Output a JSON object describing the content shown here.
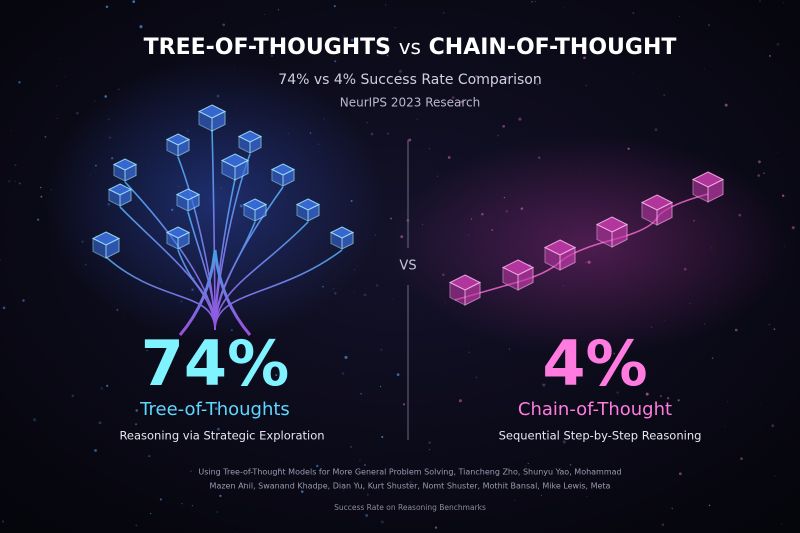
{
  "header": {
    "title_left": "TREE-OF-THOUGHTS",
    "title_vs": "vs",
    "title_right": "CHAIN-OF-THOUGHT",
    "subtitle": "74% vs 4% Success Rate Comparison",
    "source": "NeurIPS 2023 Research"
  },
  "divider": {
    "label": "VS"
  },
  "left": {
    "stat": "74%",
    "name": "Tree-of-Thoughts",
    "description": "Reasoning via Strategic Exploration"
  },
  "right": {
    "stat": "4%",
    "name": "Chain-of-Thought",
    "description": "Sequential Step-by-Step Reasoning"
  },
  "footer": {
    "citation": [
      "Using Tree-of-Thought Models for More General Problem Solving, Tiancheng Zho, Shunyu Yao, Mohammad",
      "Mazen Anil, Swanand Khadpe, Dian Yu, Kurt Shuster, Nomt Shuster, Mothit Bansal, Mike Lewis, Meta"
    ],
    "caption": "Success Rate on Reasoning Benchmarks"
  }
}
